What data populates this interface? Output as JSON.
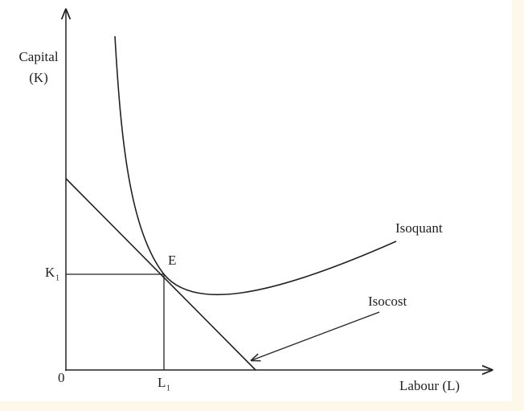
{
  "axes": {
    "y_label": [
      "Capital",
      "(K)"
    ],
    "x_label": "Labour (L)",
    "origin": "0"
  },
  "points": {
    "k": {
      "label": "K",
      "subscript": "1"
    },
    "l": {
      "label": "L",
      "subscript": "1"
    },
    "e": "E"
  },
  "curves": {
    "isoquant": "Isoquant",
    "isocost": "Isocost"
  }
}
